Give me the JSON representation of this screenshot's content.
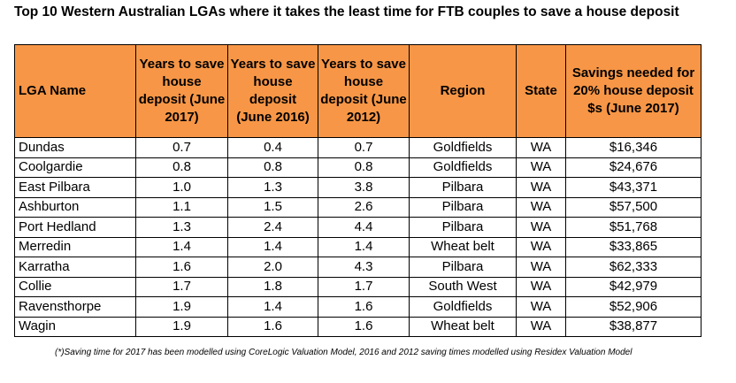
{
  "title": "Top 10 Western Australian LGAs where it takes the least time for FTB couples to save a house deposit",
  "table": {
    "headers": [
      "LGA Name",
      "Years to save house deposit (June 2017)",
      "Years to save house deposit (June 2016)",
      "Years to save house deposit (June 2012)",
      "Region",
      "State",
      "Savings needed for 20% house deposit $s (June 2017)"
    ],
    "header_color": "#f79646",
    "rows": [
      [
        "Dundas",
        "0.7",
        "0.4",
        "0.7",
        "Goldfields",
        "WA",
        "$16,346"
      ],
      [
        "Coolgardie",
        "0.8",
        "0.8",
        "0.8",
        "Goldfields",
        "WA",
        "$24,676"
      ],
      [
        "East Pilbara",
        "1.0",
        "1.3",
        "3.8",
        "Pilbara",
        "WA",
        "$43,371"
      ],
      [
        "Ashburton",
        "1.1",
        "1.5",
        "2.6",
        "Pilbara",
        "WA",
        "$57,500"
      ],
      [
        "Port Hedland",
        "1.3",
        "2.4",
        "4.4",
        "Pilbara",
        "WA",
        "$51,768"
      ],
      [
        "Merredin",
        "1.4",
        "1.4",
        "1.4",
        "Wheat belt",
        "WA",
        "$33,865"
      ],
      [
        "Karratha",
        "1.6",
        "2.0",
        "4.3",
        "Pilbara",
        "WA",
        "$62,333"
      ],
      [
        "Collie",
        "1.7",
        "1.8",
        "1.7",
        "South West",
        "WA",
        "$42,979"
      ],
      [
        "Ravensthorpe",
        "1.9",
        "1.4",
        "1.6",
        "Goldfields",
        "WA",
        "$52,906"
      ],
      [
        "Wagin",
        "1.9",
        "1.6",
        "1.6",
        "Wheat belt",
        "WA",
        "$38,877"
      ]
    ]
  },
  "footnote": "(*)Saving time for 2017 has been modelled using CoreLogic Valuation Model, 2016 and 2012 saving times modelled using Residex Valuation Model"
}
